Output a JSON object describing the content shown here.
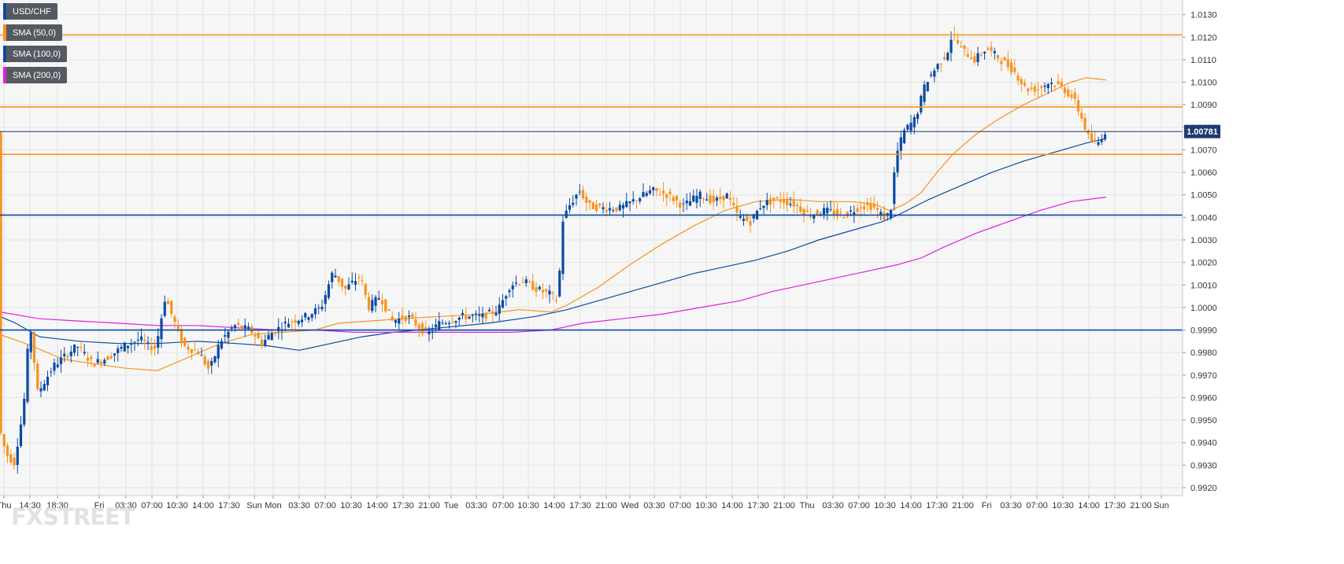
{
  "legend": [
    {
      "label": "USD/CHF",
      "color": "#0b4aa2"
    },
    {
      "label": "SMA (50,0)",
      "color": "#f7931e"
    },
    {
      "label": "SMA (100,0)",
      "color": "#0b4aa2"
    },
    {
      "label": "SMA (200,0)",
      "color": "#e11ee1"
    }
  ],
  "brand": "FXSTREET",
  "chart_data": {
    "type": "candlestick",
    "title": "",
    "xlabel": "",
    "ylabel": "",
    "ylim": [
      0.99165,
      1.01365
    ],
    "y_ticks": [
      "1.0130",
      "1.0120",
      "1.0110",
      "1.0100",
      "1.0090",
      "1.0080",
      "1.0070",
      "1.0060",
      "1.0050",
      "1.0040",
      "1.0030",
      "1.0020",
      "1.0010",
      "1.0000",
      "0.9990",
      "0.9980",
      "0.9970",
      "0.9960",
      "0.9950",
      "0.9940",
      "0.9930",
      "0.9920"
    ],
    "x_ticks": [
      "Thu",
      "14:30",
      "18:30",
      "Fri",
      "03:30",
      "07:00",
      "10:30",
      "14:00",
      "17:30",
      "Sun",
      "Mon",
      "03:30",
      "07:00",
      "10:30",
      "14:00",
      "17:30",
      "21:00",
      "Tue",
      "03:30",
      "07:00",
      "10:30",
      "14:00",
      "17:30",
      "21:00",
      "Wed",
      "03:30",
      "07:00",
      "10:30",
      "14:00",
      "17:30",
      "21:00",
      "Thu",
      "03:30",
      "07:00",
      "10:30",
      "14:00",
      "17:30",
      "21:00",
      "Fri",
      "03:30",
      "07:00",
      "10:30",
      "14:00",
      "17:30",
      "21:00",
      "Sun"
    ],
    "current_price": "1.00781",
    "horizontal_levels": [
      {
        "value": 1.0121,
        "color": "#f7931e"
      },
      {
        "value": 1.0089,
        "color": "#f7931e"
      },
      {
        "value": 1.00781,
        "color": "#1e3a6e"
      },
      {
        "value": 1.0068,
        "color": "#f7931e"
      },
      {
        "value": 1.0041,
        "color": "#0b4aa2"
      },
      {
        "value": 0.999,
        "color": "#0b4aa2"
      }
    ],
    "price_path": [
      [
        0,
        0.9948
      ],
      [
        10,
        0.9935
      ],
      [
        20,
        0.9931
      ],
      [
        32,
        0.9955
      ],
      [
        40,
        0.9994
      ],
      [
        50,
        0.9962
      ],
      [
        70,
        0.9974
      ],
      [
        100,
        0.9983
      ],
      [
        120,
        0.9975
      ],
      [
        140,
        0.9978
      ],
      [
        160,
        0.9983
      ],
      [
        180,
        0.9986
      ],
      [
        190,
        0.9983
      ],
      [
        200,
        0.9982
      ],
      [
        212,
        1.0005
      ],
      [
        222,
        0.9995
      ],
      [
        235,
        0.9983
      ],
      [
        255,
        0.998
      ],
      [
        268,
        0.9972
      ],
      [
        282,
        0.9985
      ],
      [
        300,
        0.9992
      ],
      [
        320,
        0.999
      ],
      [
        335,
        0.9984
      ],
      [
        345,
        0.9988
      ],
      [
        365,
        0.9993
      ],
      [
        390,
        0.9996
      ],
      [
        410,
        1.0
      ],
      [
        425,
        1.0016
      ],
      [
        440,
        1.0008
      ],
      [
        460,
        1.0014
      ],
      [
        470,
        1.0
      ],
      [
        485,
        1.0005
      ],
      [
        500,
        0.9994
      ],
      [
        520,
        0.9996
      ],
      [
        545,
        0.9988
      ],
      [
        560,
        0.9993
      ],
      [
        590,
        0.9996
      ],
      [
        615,
        0.9996
      ],
      [
        635,
        0.9999
      ],
      [
        650,
        1.001
      ],
      [
        665,
        1.0012
      ],
      [
        685,
        1.0008
      ],
      [
        700,
        1.0006
      ],
      [
        711,
        1.0003
      ],
      [
        716,
        1.0038
      ],
      [
        725,
        1.0045
      ],
      [
        738,
        1.0052
      ],
      [
        750,
        1.0045
      ],
      [
        770,
        1.0044
      ],
      [
        790,
        1.0044
      ],
      [
        810,
        1.0048
      ],
      [
        830,
        1.0052
      ],
      [
        850,
        1.005
      ],
      [
        870,
        1.0045
      ],
      [
        890,
        1.005
      ],
      [
        910,
        1.0047
      ],
      [
        925,
        1.005
      ],
      [
        940,
        1.004
      ],
      [
        955,
        1.0038
      ],
      [
        970,
        1.0046
      ],
      [
        990,
        1.0048
      ],
      [
        1010,
        1.0046
      ],
      [
        1030,
        1.0041
      ],
      [
        1050,
        1.0043
      ],
      [
        1075,
        1.0041
      ],
      [
        1095,
        1.0045
      ],
      [
        1110,
        1.0045
      ],
      [
        1125,
        1.004
      ],
      [
        1133,
        1.0042
      ],
      [
        1140,
        1.0067
      ],
      [
        1150,
        1.0078
      ],
      [
        1165,
        1.0084
      ],
      [
        1178,
        1.01
      ],
      [
        1192,
        1.0107
      ],
      [
        1205,
        1.0113
      ],
      [
        1212,
        1.0122
      ],
      [
        1222,
        1.0115
      ],
      [
        1240,
        1.011
      ],
      [
        1255,
        1.0115
      ],
      [
        1270,
        1.0111
      ],
      [
        1290,
        1.0105
      ],
      [
        1305,
        1.0097
      ],
      [
        1320,
        1.0097
      ],
      [
        1335,
        1.01
      ],
      [
        1350,
        1.0098
      ],
      [
        1365,
        1.0093
      ],
      [
        1375,
        1.0085
      ],
      [
        1385,
        1.0075
      ],
      [
        1395,
        1.0072
      ],
      [
        1405,
        1.0078
      ]
    ],
    "series": [
      {
        "name": "SMA (50,0)",
        "color": "#f7931e",
        "points": [
          [
            0,
            0.9988
          ],
          [
            40,
            0.9983
          ],
          [
            80,
            0.9977
          ],
          [
            120,
            0.9975
          ],
          [
            160,
            0.9973
          ],
          [
            200,
            0.9972
          ],
          [
            240,
            0.9978
          ],
          [
            280,
            0.9984
          ],
          [
            320,
            0.9988
          ],
          [
            360,
            0.9989
          ],
          [
            400,
            0.999
          ],
          [
            430,
            0.9993
          ],
          [
            470,
            0.9994
          ],
          [
            510,
            0.9995
          ],
          [
            560,
            0.9996
          ],
          [
            610,
            0.9997
          ],
          [
            660,
            0.9999
          ],
          [
            700,
            0.9998
          ],
          [
            720,
            1.0001
          ],
          [
            760,
            1.0009
          ],
          [
            800,
            1.0019
          ],
          [
            840,
            1.0028
          ],
          [
            880,
            1.0036
          ],
          [
            920,
            1.0043
          ],
          [
            960,
            1.0047
          ],
          [
            1000,
            1.0048
          ],
          [
            1040,
            1.0047
          ],
          [
            1080,
            1.0047
          ],
          [
            1110,
            1.0046
          ],
          [
            1130,
            1.0043
          ],
          [
            1150,
            1.0046
          ],
          [
            1170,
            1.0051
          ],
          [
            1190,
            1.006
          ],
          [
            1210,
            1.0068
          ],
          [
            1240,
            1.0077
          ],
          [
            1270,
            1.0084
          ],
          [
            1300,
            1.009
          ],
          [
            1330,
            1.0095
          ],
          [
            1360,
            1.01
          ],
          [
            1380,
            1.0102
          ],
          [
            1405,
            1.0101
          ]
        ]
      },
      {
        "name": "SMA (100,0)",
        "color": "#0b4aa2",
        "points": [
          [
            0,
            0.9996
          ],
          [
            20,
            0.9993
          ],
          [
            50,
            0.9987
          ],
          [
            100,
            0.9985
          ],
          [
            150,
            0.9984
          ],
          [
            200,
            0.9984
          ],
          [
            250,
            0.9985
          ],
          [
            300,
            0.9984
          ],
          [
            340,
            0.9983
          ],
          [
            380,
            0.9981
          ],
          [
            420,
            0.9984
          ],
          [
            460,
            0.9987
          ],
          [
            500,
            0.9989
          ],
          [
            560,
            0.9991
          ],
          [
            620,
            0.9993
          ],
          [
            680,
            0.9996
          ],
          [
            720,
            0.9999
          ],
          [
            760,
            1.0003
          ],
          [
            800,
            1.0007
          ],
          [
            840,
            1.0011
          ],
          [
            880,
            1.0015
          ],
          [
            920,
            1.0018
          ],
          [
            960,
            1.0021
          ],
          [
            1000,
            1.0025
          ],
          [
            1040,
            1.003
          ],
          [
            1080,
            1.0034
          ],
          [
            1120,
            1.0038
          ],
          [
            1140,
            1.0041
          ],
          [
            1180,
            1.0048
          ],
          [
            1220,
            1.0054
          ],
          [
            1260,
            1.006
          ],
          [
            1300,
            1.0065
          ],
          [
            1340,
            1.0069
          ],
          [
            1380,
            1.0073
          ],
          [
            1405,
            1.0075
          ]
        ]
      },
      {
        "name": "SMA (200,0)",
        "color": "#e11ee1",
        "points": [
          [
            0,
            0.9998
          ],
          [
            50,
            0.9995
          ],
          [
            100,
            0.9994
          ],
          [
            150,
            0.9993
          ],
          [
            200,
            0.9992
          ],
          [
            250,
            0.9992
          ],
          [
            300,
            0.9991
          ],
          [
            350,
            0.999
          ],
          [
            400,
            0.999
          ],
          [
            450,
            0.9989
          ],
          [
            500,
            0.9989
          ],
          [
            550,
            0.9989
          ],
          [
            600,
            0.9989
          ],
          [
            650,
            0.9989
          ],
          [
            700,
            0.999
          ],
          [
            740,
            0.9993
          ],
          [
            790,
            0.9995
          ],
          [
            840,
            0.9997
          ],
          [
            890,
            1.0
          ],
          [
            940,
            1.0003
          ],
          [
            980,
            1.0007
          ],
          [
            1020,
            1.001
          ],
          [
            1060,
            1.0013
          ],
          [
            1100,
            1.0016
          ],
          [
            1140,
            1.0019
          ],
          [
            1170,
            1.0022
          ],
          [
            1200,
            1.0027
          ],
          [
            1240,
            1.0033
          ],
          [
            1280,
            1.0038
          ],
          [
            1320,
            1.0043
          ],
          [
            1360,
            1.0047
          ],
          [
            1405,
            1.0049
          ]
        ]
      }
    ]
  }
}
